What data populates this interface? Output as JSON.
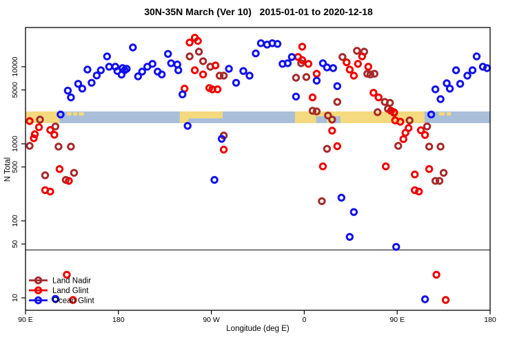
{
  "title": "30N-35N March (Ver 10)   2015-01-01 to 2020-12-18",
  "axes": {
    "x": {
      "label": "Longitude (deg E)",
      "range": [
        90,
        540
      ],
      "ticks": [
        {
          "value": 90,
          "label": "90 E"
        },
        {
          "value": 180,
          "label": "180"
        },
        {
          "value": 270,
          "label": "90 W"
        },
        {
          "value": 360,
          "label": "0"
        },
        {
          "value": 450,
          "label": "90 E"
        },
        {
          "value": 540,
          "label": "180"
        }
      ]
    },
    "y": {
      "label": "N Total",
      "scale": "log",
      "range": [
        7,
        32000
      ],
      "ticks": [
        {
          "value": 10000,
          "label": "10000"
        },
        {
          "value": 5000,
          "label": "5000"
        },
        {
          "value": 1000,
          "label": "1000"
        },
        {
          "value": 500,
          "label": "500"
        },
        {
          "value": 100,
          "label": "100"
        },
        {
          "value": 50,
          "label": "50"
        },
        {
          "value": 10,
          "label": "10"
        }
      ]
    }
  },
  "legend": {
    "items": [
      {
        "label": "Land Nadir",
        "color": "#A52A2A"
      },
      {
        "label": "Land Glint",
        "color": "#EE0000"
      },
      {
        "label": "Ocean Glint",
        "color": "#1010EE"
      }
    ]
  },
  "reference_line": {
    "value": 42
  },
  "map_band": {
    "ocean_color": "#A9BFD9",
    "land_color": "#F5D97E",
    "segments": [
      {
        "lon": [
          90,
          123
        ],
        "part": "full",
        "type": "land"
      },
      {
        "lon": [
          130,
          134.5
        ],
        "part": "speck",
        "type": "land"
      },
      {
        "lon": [
          136,
          140
        ],
        "part": "speck",
        "type": "land"
      },
      {
        "lon": [
          141.5,
          146.5
        ],
        "part": "speck",
        "type": "land"
      },
      {
        "lon": [
          239.5,
          248
        ],
        "part": "full",
        "type": "land"
      },
      {
        "lon": [
          248,
          281
        ],
        "part": "top",
        "type": "land"
      },
      {
        "lon": [
          351,
          476.5
        ],
        "part": "full",
        "type": "land"
      },
      {
        "lon": [
          371.5,
          382
        ],
        "part": "bottom",
        "type": "ocean"
      },
      {
        "lon": [
          388,
          395
        ],
        "part": "bottom",
        "type": "ocean"
      },
      {
        "lon": [
          490.5,
          496
        ],
        "part": "speck",
        "type": "land"
      },
      {
        "lon": [
          498,
          502
        ],
        "part": "speck",
        "type": "land"
      }
    ]
  },
  "chart_data": {
    "type": "scatter",
    "x_units": "longitude deg E (axis runs 90E eastward to 180 on second wrap)",
    "y_units": "N Total (log scale)",
    "series": [
      {
        "name": "Land Nadir",
        "color": "#A52A2A",
        "points": [
          [
            94,
            940
          ],
          [
            104,
            2060
          ],
          [
            109,
            390
          ],
          [
            119,
            1680
          ],
          [
            122,
            920
          ],
          [
            129,
            340
          ],
          [
            134,
            920
          ],
          [
            137,
            420
          ],
          [
            249,
            13600
          ],
          [
            258,
            15700
          ],
          [
            262,
            11800
          ],
          [
            269,
            10000
          ],
          [
            278,
            7650
          ],
          [
            282,
            7650
          ],
          [
            282,
            1280
          ],
          [
            352,
            7200
          ],
          [
            357,
            11100
          ],
          [
            362,
            7350
          ],
          [
            368,
            2680
          ],
          [
            372,
            2630
          ],
          [
            377,
            180
          ],
          [
            382,
            860
          ],
          [
            383,
            2330
          ],
          [
            387,
            2060
          ],
          [
            392,
            3500
          ],
          [
            397,
            13400
          ],
          [
            411,
            16100
          ],
          [
            418,
            15700
          ],
          [
            421,
            8100
          ],
          [
            424,
            7950
          ],
          [
            428,
            8100
          ],
          [
            431,
            2570
          ],
          [
            438,
            3500
          ],
          [
            441,
            2850
          ],
          [
            443,
            3400
          ],
          [
            447,
            2570
          ],
          [
            451,
            940
          ],
          [
            462,
            2010
          ],
          [
            479,
            1680
          ],
          [
            481,
            920
          ],
          [
            487,
            330
          ],
          [
            491,
            330
          ],
          [
            492,
            920
          ],
          [
            495,
            420
          ]
        ]
      },
      {
        "name": "Land Glint",
        "color": "#EE0000",
        "points": [
          [
            94,
            1970
          ],
          [
            98,
            1180
          ],
          [
            99,
            1330
          ],
          [
            103,
            1640
          ],
          [
            109,
            250
          ],
          [
            114,
            240
          ],
          [
            114,
            1510
          ],
          [
            118,
            1310
          ],
          [
            123,
            470
          ],
          [
            130,
            20
          ],
          [
            132,
            330
          ],
          [
            136,
            9.4
          ],
          [
            244,
            5200
          ],
          [
            249,
            20600
          ],
          [
            254,
            23800
          ],
          [
            254,
            9000
          ],
          [
            257,
            21600
          ],
          [
            262,
            7950
          ],
          [
            268,
            5300
          ],
          [
            271,
            5100
          ],
          [
            274,
            10400
          ],
          [
            276,
            5100
          ],
          [
            282,
            840
          ],
          [
            354,
            13400
          ],
          [
            358,
            18200
          ],
          [
            358,
            12200
          ],
          [
            364,
            10900
          ],
          [
            368,
            4000
          ],
          [
            372,
            8100
          ],
          [
            378,
            510
          ],
          [
            387,
            1480
          ],
          [
            392,
            930
          ],
          [
            401,
            11400
          ],
          [
            404,
            9200
          ],
          [
            408,
            7650
          ],
          [
            412,
            10900
          ],
          [
            416,
            13600
          ],
          [
            422,
            10000
          ],
          [
            427,
            4600
          ],
          [
            432,
            4000
          ],
          [
            439,
            510
          ],
          [
            444,
            2680
          ],
          [
            447,
            2520
          ],
          [
            448,
            2010
          ],
          [
            453,
            1930
          ],
          [
            456,
            1150
          ],
          [
            458,
            1390
          ],
          [
            461,
            1600
          ],
          [
            467,
            250
          ],
          [
            467,
            400
          ],
          [
            471,
            240
          ],
          [
            473,
            1500
          ],
          [
            477,
            1300
          ],
          [
            481,
            470
          ],
          [
            488,
            20
          ],
          [
            497,
            9.4
          ]
        ]
      },
      {
        "name": "Ocean Glint",
        "color": "#1010EE",
        "points": [
          [
            124,
            2400
          ],
          [
            131,
            4900
          ],
          [
            134,
            4000
          ],
          [
            141,
            6000
          ],
          [
            145,
            5200
          ],
          [
            150,
            9200
          ],
          [
            154,
            6200
          ],
          [
            159,
            7700
          ],
          [
            163,
            9000
          ],
          [
            169,
            13600
          ],
          [
            171,
            10000
          ],
          [
            177,
            10000
          ],
          [
            179,
            8800
          ],
          [
            183,
            7900
          ],
          [
            184,
            9600
          ],
          [
            186,
            9000
          ],
          [
            188,
            9400
          ],
          [
            194,
            17800
          ],
          [
            199,
            7500
          ],
          [
            203,
            8650
          ],
          [
            208,
            10000
          ],
          [
            213,
            10900
          ],
          [
            218,
            8650
          ],
          [
            222,
            7950
          ],
          [
            228,
            14700
          ],
          [
            231,
            11100
          ],
          [
            237,
            10700
          ],
          [
            238,
            9000
          ],
          [
            242,
            4380
          ],
          [
            247,
            1710
          ],
          [
            273,
            340
          ],
          [
            280,
            1160
          ],
          [
            287,
            9400
          ],
          [
            294,
            6200
          ],
          [
            301,
            8800
          ],
          [
            307,
            7650
          ],
          [
            313,
            14900
          ],
          [
            318,
            20200
          ],
          [
            324,
            19400
          ],
          [
            329,
            20200
          ],
          [
            334,
            19800
          ],
          [
            339,
            10900
          ],
          [
            344,
            11100
          ],
          [
            348,
            13400
          ],
          [
            352,
            4100
          ],
          [
            372,
            6600
          ],
          [
            378,
            11100
          ],
          [
            382,
            9800
          ],
          [
            388,
            9600
          ],
          [
            392,
            5600
          ],
          [
            396,
            200
          ],
          [
            404,
            62
          ],
          [
            408,
            130
          ],
          [
            449,
            46
          ],
          [
            477,
            9.6
          ],
          [
            119,
            9.7
          ],
          [
            483,
            2400
          ],
          [
            487,
            5100
          ],
          [
            492,
            3800
          ],
          [
            498,
            6100
          ],
          [
            501,
            5200
          ],
          [
            507,
            9000
          ],
          [
            511,
            6000
          ],
          [
            518,
            7650
          ],
          [
            523,
            9000
          ],
          [
            527,
            13600
          ],
          [
            533,
            10000
          ],
          [
            537,
            9600
          ]
        ]
      }
    ]
  }
}
